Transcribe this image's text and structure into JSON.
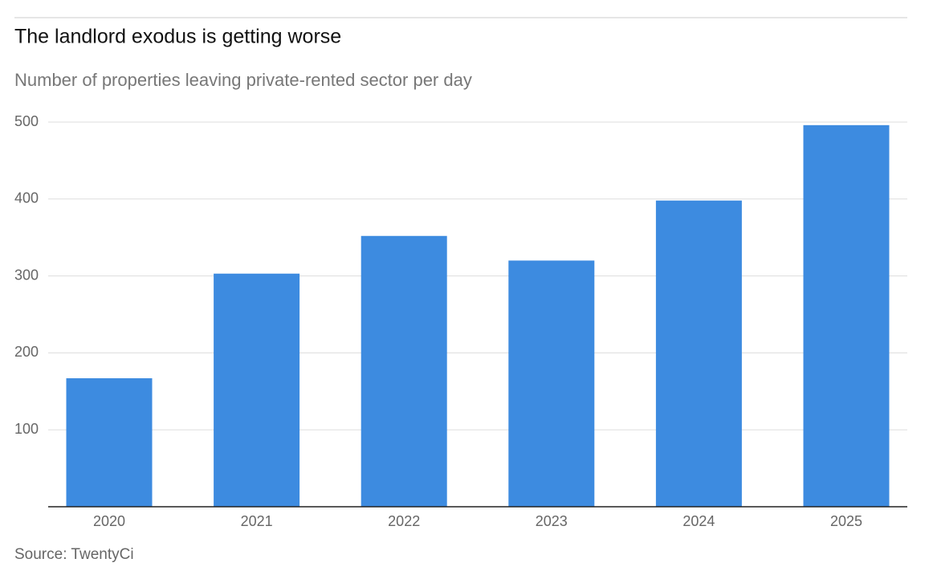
{
  "chart_data": {
    "type": "bar",
    "title": "The landlord exodus is getting worse",
    "subtitle": "Number of properties leaving private-rented sector per day",
    "source": "Source: TwentyCi",
    "categories": [
      "2020",
      "2021",
      "2022",
      "2023",
      "2024",
      "2025"
    ],
    "values": [
      167,
      303,
      352,
      320,
      398,
      496
    ],
    "color": "#3d8be0",
    "ylim": [
      0,
      500
    ],
    "yticks": [
      100,
      200,
      300,
      400,
      500
    ],
    "grid": true
  }
}
